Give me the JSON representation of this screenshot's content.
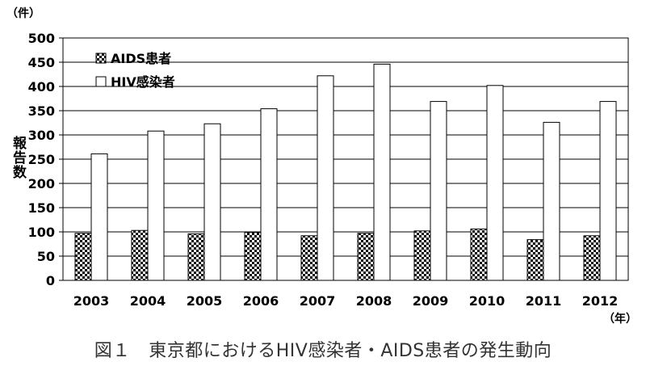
{
  "chart_data": {
    "type": "bar",
    "categories": [
      "2003",
      "2004",
      "2005",
      "2006",
      "2007",
      "2008",
      "2009",
      "2010",
      "2011",
      "2012"
    ],
    "series": [
      {
        "name": "AIDS患者",
        "values": [
          97,
          103,
          96,
          99,
          92,
          97,
          102,
          106,
          84,
          92
        ],
        "pattern": "checker"
      },
      {
        "name": "HIV感染者",
        "values": [
          261,
          308,
          323,
          354,
          422,
          446,
          369,
          402,
          326,
          369
        ],
        "pattern": "white"
      }
    ],
    "yticks": [
      "0",
      "50",
      "100",
      "150",
      "200",
      "250",
      "300",
      "350",
      "400",
      "450",
      "500"
    ],
    "ylim": [
      0,
      500
    ],
    "ylabel": "報告数",
    "y_unit": "（件）",
    "x_unit": "（年）",
    "caption": "図１　東京都におけるHIV感染者・AIDS患者の発生動向",
    "grid": true,
    "legend_position": "top-left"
  }
}
